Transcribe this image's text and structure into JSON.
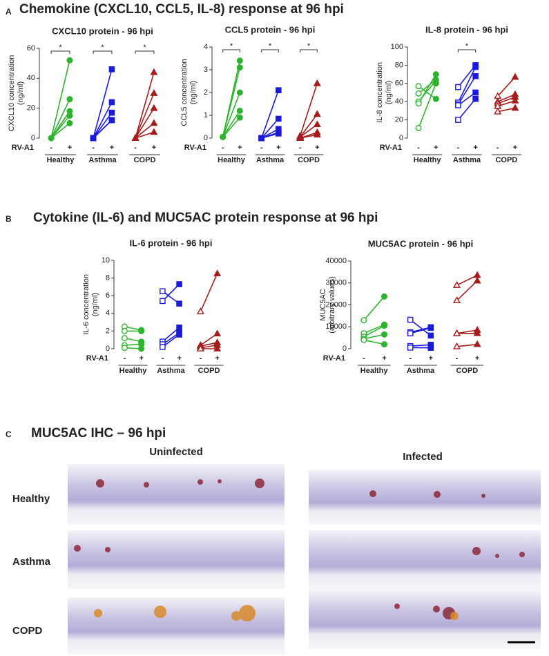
{
  "sections": [
    {
      "letter": "A",
      "title": "Chemokine (CXCL10, CCL5, IL-8) response at 96 hpi"
    },
    {
      "letter": "B",
      "title": "Cytokine (IL-6) and MUC5AC protein response at 96 hpi"
    },
    {
      "letter": "C",
      "title": "MUC5AC IHC – 96 hpi"
    }
  ],
  "ihc": {
    "columns": [
      "Uninfected",
      "Infected"
    ],
    "rows": [
      "Healthy",
      "Asthma",
      "COPD"
    ]
  },
  "chart_data": [
    {
      "type": "paired",
      "title": "CXCL10 protein - 96 hpi",
      "ylabel": [
        "CXCL10 concentration",
        "(ng/ml)"
      ],
      "condition_label": "RV-A1",
      "conditions": [
        "-",
        "+"
      ],
      "open_markers_for_uninfected": false,
      "ylim": [
        0,
        60
      ],
      "yticks": [
        0,
        20,
        40,
        60
      ],
      "series": [
        {
          "name": "Healthy",
          "color": "#2db32d",
          "marker": "circle",
          "significance": "*",
          "uninfected": [
            0,
            0,
            0,
            0,
            0
          ],
          "infected": [
            52,
            26,
            18,
            15,
            10
          ]
        },
        {
          "name": "Asthma",
          "color": "#1a1adb",
          "marker": "square",
          "significance": "*",
          "uninfected": [
            0,
            0,
            0,
            0,
            0
          ],
          "infected": [
            46,
            24,
            17,
            12,
            12
          ]
        },
        {
          "name": "COPD",
          "color": "#a51c1c",
          "marker": "triangle",
          "significance": "*",
          "uninfected": [
            0,
            0,
            0,
            0,
            0
          ],
          "infected": [
            44,
            30,
            20,
            10,
            4
          ]
        }
      ]
    },
    {
      "type": "paired",
      "title": "CCL5 protein - 96 hpi",
      "ylabel": [
        "CCL5 concentration",
        "(ng/ml)"
      ],
      "condition_label": "RV-A1",
      "conditions": [
        "-",
        "+"
      ],
      "open_markers_for_uninfected": false,
      "ylim": [
        0,
        4
      ],
      "yticks": [
        0,
        1,
        2,
        3,
        4
      ],
      "series": [
        {
          "name": "Healthy",
          "color": "#2db32d",
          "marker": "circle",
          "significance": "*",
          "uninfected": [
            0.05,
            0.05,
            0.05,
            0.05,
            0.05
          ],
          "infected": [
            3.4,
            3.1,
            2.0,
            1.2,
            0.9
          ]
        },
        {
          "name": "Asthma",
          "color": "#1a1adb",
          "marker": "square",
          "significance": "*",
          "uninfected": [
            0,
            0,
            0,
            0,
            0
          ],
          "infected": [
            2.1,
            0.85,
            0.4,
            0.25,
            0.2
          ]
        },
        {
          "name": "COPD",
          "color": "#a51c1c",
          "marker": "triangle",
          "significance": "*",
          "uninfected": [
            0.1,
            0.05,
            0.05,
            0,
            0
          ],
          "infected": [
            2.4,
            1.05,
            0.6,
            0.25,
            0.15
          ]
        }
      ]
    },
    {
      "type": "paired",
      "title": "IL-8 protein - 96 hpi",
      "ylabel": [
        "IL-8 concentration",
        "(ng/ml)"
      ],
      "condition_label": "RV-A1",
      "conditions": [
        "-",
        "+"
      ],
      "open_markers_for_uninfected": true,
      "ylim": [
        0,
        100
      ],
      "yticks": [
        0,
        20,
        40,
        60,
        80,
        100
      ],
      "series": [
        {
          "name": "Healthy",
          "color": "#2db32d",
          "marker": "circle",
          "uninfected": [
            57,
            49,
            40,
            38,
            11
          ],
          "infected": [
            43,
            64,
            63,
            70,
            60
          ]
        },
        {
          "name": "Asthma",
          "color": "#1a1adb",
          "marker": "square",
          "significance": "*",
          "uninfected": [
            56,
            39,
            37,
            36,
            20
          ],
          "infected": [
            80,
            78,
            68,
            50,
            43
          ]
        },
        {
          "name": "COPD",
          "color": "#a51c1c",
          "marker": "triangle",
          "uninfected": [
            46,
            40,
            38,
            35,
            29
          ],
          "infected": [
            67,
            48,
            45,
            41,
            33
          ]
        }
      ]
    },
    {
      "type": "paired",
      "title": "IL-6 protein - 96 hpi",
      "ylabel": [
        "IL-6 concentration",
        "(ng/ml)"
      ],
      "condition_label": "RV-A1",
      "conditions": [
        "-",
        "+"
      ],
      "open_markers_for_uninfected": true,
      "ylim": [
        0,
        10
      ],
      "yticks": [
        0,
        2,
        4,
        6,
        8,
        10
      ],
      "series": [
        {
          "name": "Healthy",
          "color": "#2db32d",
          "marker": "circle",
          "uninfected": [
            2.5,
            2.0,
            1.2,
            0.4,
            0.1
          ],
          "infected": [
            2.1,
            2.0,
            0.8,
            0.5,
            0.0
          ]
        },
        {
          "name": "Asthma",
          "color": "#1a1adb",
          "marker": "square",
          "uninfected": [
            6.5,
            5.4,
            0.8,
            0.5,
            0.2
          ],
          "infected": [
            5.1,
            7.3,
            2.4,
            1.8,
            1.6
          ]
        },
        {
          "name": "COPD",
          "color": "#a51c1c",
          "marker": "triangle",
          "uninfected": [
            4.2,
            0.4,
            0.3,
            0.1,
            0.0
          ],
          "infected": [
            8.5,
            1.7,
            0.7,
            0.4,
            0.0
          ]
        }
      ]
    },
    {
      "type": "paired",
      "title": "MUC5AC protein - 96 hpi",
      "ylabel": [
        "MUC5AC",
        "(arbitrary values)"
      ],
      "condition_label": "RV-A1",
      "conditions": [
        "-",
        "+"
      ],
      "open_markers_for_uninfected": true,
      "ylim": [
        0,
        40000
      ],
      "yticks": [
        0,
        10000,
        20000,
        30000,
        40000
      ],
      "series": [
        {
          "name": "Healthy",
          "color": "#2db32d",
          "marker": "circle",
          "uninfected": [
            13000,
            7000,
            5500,
            4500,
            4000
          ],
          "infected": [
            23800,
            11000,
            10500,
            6500,
            2000
          ]
        },
        {
          "name": "Asthma",
          "color": "#1a1adb",
          "marker": "square",
          "uninfected": [
            13200,
            7500,
            7000,
            1200,
            500
          ],
          "infected": [
            6000,
            9800,
            9500,
            1800,
            400
          ]
        },
        {
          "name": "COPD",
          "color": "#a51c1c",
          "marker": "triangle",
          "uninfected": [
            29000,
            22000,
            7000,
            7000,
            1000
          ],
          "infected": [
            33500,
            31000,
            8500,
            7000,
            2000
          ]
        }
      ]
    }
  ]
}
